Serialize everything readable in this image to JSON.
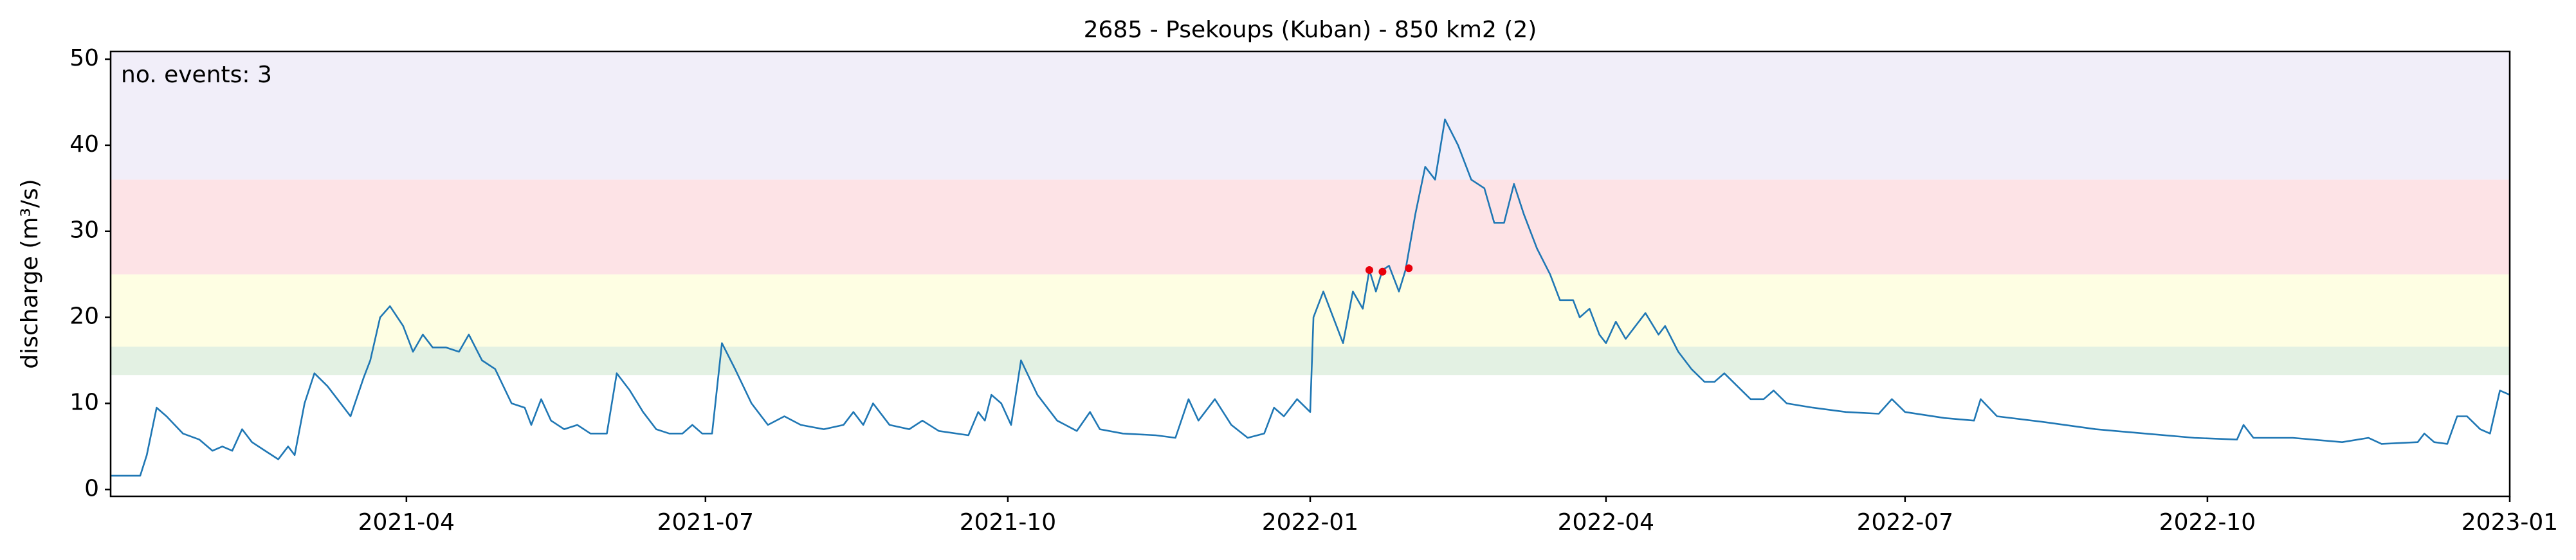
{
  "chart_data": {
    "type": "line",
    "title": "2685 - Psekoups (Kuban) - 850 km2 (2)",
    "ylabel": "discharge (m³/s)",
    "annotation": {
      "text": "no. events: 3",
      "color": "#e8000b"
    },
    "xlim": [
      "2021-01-01",
      "2023-01-01"
    ],
    "xticks": [
      "2021-04",
      "2021-07",
      "2021-10",
      "2022-01",
      "2022-04",
      "2022-07",
      "2022-10",
      "2023-01"
    ],
    "ylim": [
      -0.8,
      50.9
    ],
    "yticks": [
      0,
      10,
      20,
      30,
      40,
      50
    ],
    "bands": [
      {
        "from": 13.3,
        "to": 16.6,
        "color": "#e3f1e3"
      },
      {
        "from": 16.6,
        "to": 25,
        "color": "#fefee3"
      },
      {
        "from": 25,
        "to": 36,
        "color": "#fde3e6"
      },
      {
        "from": 36,
        "to": 50.9,
        "color": "#f1eef9"
      }
    ],
    "series": [
      {
        "type": "line",
        "color": "#1f77b4",
        "x": [
          "2021-01-01",
          "2021-01-10",
          "2021-01-12",
          "2021-01-15",
          "2021-01-18",
          "2021-01-23",
          "2021-01-28",
          "2021-02-01",
          "2021-02-04",
          "2021-02-07",
          "2021-02-10",
          "2021-02-13",
          "2021-02-17",
          "2021-02-21",
          "2021-02-24",
          "2021-02-26",
          "2021-03-01",
          "2021-03-04",
          "2021-03-08",
          "2021-03-12",
          "2021-03-15",
          "2021-03-19",
          "2021-03-21",
          "2021-03-24",
          "2021-03-27",
          "2021-03-31",
          "2021-04-03",
          "2021-04-06",
          "2021-04-09",
          "2021-04-13",
          "2021-04-17",
          "2021-04-20",
          "2021-04-24",
          "2021-04-28",
          "2021-05-03",
          "2021-05-07",
          "2021-05-09",
          "2021-05-12",
          "2021-05-15",
          "2021-05-19",
          "2021-05-23",
          "2021-05-27",
          "2021-06-01",
          "2021-06-04",
          "2021-06-08",
          "2021-06-12",
          "2021-06-16",
          "2021-06-20",
          "2021-06-24",
          "2021-06-27",
          "2021-06-30",
          "2021-07-03",
          "2021-07-06",
          "2021-07-10",
          "2021-07-15",
          "2021-07-20",
          "2021-07-25",
          "2021-07-30",
          "2021-08-06",
          "2021-08-12",
          "2021-08-15",
          "2021-08-18",
          "2021-08-21",
          "2021-08-26",
          "2021-09-01",
          "2021-09-05",
          "2021-09-10",
          "2021-09-19",
          "2021-09-22",
          "2021-09-24",
          "2021-09-26",
          "2021-09-29",
          "2021-10-02",
          "2021-10-05",
          "2021-10-10",
          "2021-10-16",
          "2021-10-22",
          "2021-10-26",
          "2021-10-29",
          "2021-11-05",
          "2021-11-15",
          "2021-11-21",
          "2021-11-25",
          "2021-11-28",
          "2021-12-03",
          "2021-12-08",
          "2021-12-13",
          "2021-12-18",
          "2021-12-21",
          "2021-12-24",
          "2021-12-28",
          "2022-01-01",
          "2022-01-02",
          "2022-01-05",
          "2022-01-08",
          "2022-01-11",
          "2022-01-14",
          "2022-01-17",
          "2022-01-19",
          "2022-01-21",
          "2022-01-23",
          "2022-01-25",
          "2022-01-28",
          "2022-01-30",
          "2022-02-02",
          "2022-02-05",
          "2022-02-08",
          "2022-02-11",
          "2022-02-15",
          "2022-02-19",
          "2022-02-23",
          "2022-02-26",
          "2022-03-01",
          "2022-03-04",
          "2022-03-07",
          "2022-03-11",
          "2022-03-15",
          "2022-03-18",
          "2022-03-22",
          "2022-03-24",
          "2022-03-27",
          "2022-03-30",
          "2022-04-01",
          "2022-04-04",
          "2022-04-07",
          "2022-04-10",
          "2022-04-13",
          "2022-04-17",
          "2022-04-19",
          "2022-04-23",
          "2022-04-27",
          "2022-05-01",
          "2022-05-04",
          "2022-05-07",
          "2022-05-11",
          "2022-05-15",
          "2022-05-19",
          "2022-05-22",
          "2022-05-26",
          "2022-06-03",
          "2022-06-13",
          "2022-06-23",
          "2022-06-27",
          "2022-07-01",
          "2022-07-13",
          "2022-07-22",
          "2022-07-24",
          "2022-07-29",
          "2022-08-13",
          "2022-08-28",
          "2022-09-12",
          "2022-09-27",
          "2022-10-10",
          "2022-10-12",
          "2022-10-15",
          "2022-10-27",
          "2022-11-11",
          "2022-11-19",
          "2022-11-23",
          "2022-12-04",
          "2022-12-06",
          "2022-12-09",
          "2022-12-13",
          "2022-12-16",
          "2022-12-19",
          "2022-12-23",
          "2022-12-26",
          "2022-12-29",
          "2023-01-01"
        ],
        "values": [
          1.6,
          1.6,
          4,
          9.5,
          8.5,
          6.5,
          5.8,
          4.5,
          5,
          4.5,
          7,
          5.5,
          4.5,
          3.5,
          5,
          4,
          10,
          13.5,
          12,
          10,
          8.5,
          13,
          15,
          20,
          21.3,
          19,
          16,
          18,
          16.5,
          16.5,
          16,
          18,
          15,
          14,
          10,
          9.5,
          7.5,
          10.5,
          8,
          7,
          7.5,
          6.5,
          6.5,
          13.5,
          11.5,
          9,
          7,
          6.5,
          6.5,
          7.5,
          6.5,
          6.5,
          17,
          14,
          10,
          7.5,
          8.5,
          7.5,
          7,
          7.5,
          9,
          7.5,
          10,
          7.5,
          7,
          8,
          6.8,
          6.3,
          9,
          8,
          11,
          10,
          7.5,
          15,
          11,
          8,
          6.8,
          9,
          7,
          6.5,
          6.3,
          6,
          10.5,
          8,
          10.5,
          7.5,
          6,
          6.5,
          9.5,
          8.5,
          10.5,
          9,
          20,
          23,
          20,
          17,
          23,
          21,
          25.5,
          23,
          25.5,
          26,
          23,
          25.5,
          32,
          37.5,
          36,
          43,
          40,
          36,
          35,
          31,
          31,
          35.5,
          32,
          28,
          25,
          22,
          22,
          20,
          21,
          18,
          17,
          19.5,
          17.5,
          19,
          20.5,
          18,
          19,
          16,
          14,
          12.5,
          12.5,
          13.5,
          12,
          10.5,
          10.5,
          11.5,
          10,
          9.5,
          9,
          8.8,
          10.5,
          9,
          8.3,
          8,
          10.5,
          8.5,
          7.8,
          7,
          6.5,
          6,
          5.8,
          7.5,
          6,
          6,
          5.5,
          6,
          5.3,
          5.5,
          6.5,
          5.5,
          5.3,
          8.5,
          8.5,
          7,
          6.5,
          11.5,
          11
        ]
      },
      {
        "type": "scatter",
        "color": "#e8000b",
        "x": [
          "2022-01-19",
          "2022-01-23",
          "2022-01-31"
        ],
        "values": [
          25.5,
          25.3,
          25.7
        ]
      }
    ]
  }
}
